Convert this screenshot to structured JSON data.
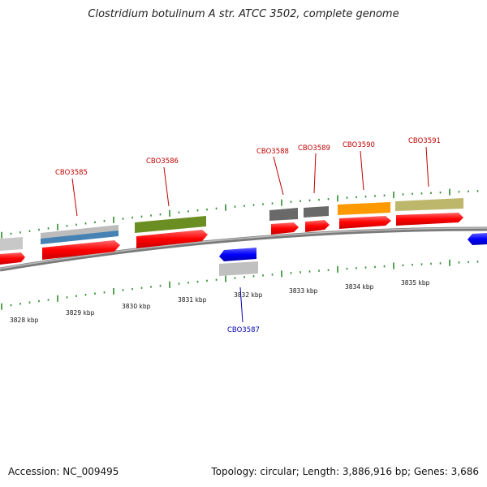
{
  "title": "Clostridium botulinum A str. ATCC 3502, complete genome",
  "accession": "Accession: NC_009495",
  "topology": "Topology: circular; Length: 3,886,916 bp; Genes: 3,686",
  "colors": {
    "label_forward": "#c00000",
    "label_reverse": "#0000b0",
    "cds_forward": "#ff0000",
    "cds_reverse": "#0000ff",
    "backbone": "#808080",
    "tick": "#2e8b2e"
  },
  "kbp_ticks": [
    "3828 kbp",
    "3829 kbp",
    "3830 kbp",
    "3831 kbp",
    "3832 kbp",
    "3833 kbp",
    "3834 kbp",
    "3835 kbp"
  ],
  "genes": [
    {
      "label": "",
      "strand": "forward",
      "func_color": "#c8c8c8"
    },
    {
      "label": "CBO3585",
      "strand": "forward",
      "func_color": "#c0c0c0",
      "func_color2": "#4682b4"
    },
    {
      "label": "CBO3586",
      "strand": "forward",
      "func_color": "#6b8e23"
    },
    {
      "label": "CBO3587",
      "strand": "reverse",
      "func_color": "#c0c0c0"
    },
    {
      "label": "CBO3588",
      "strand": "forward",
      "func_color": "#696969"
    },
    {
      "label": "CBO3589",
      "strand": "forward",
      "func_color": "#696969"
    },
    {
      "label": "CBO3590",
      "strand": "forward",
      "func_color": "#ff9900"
    },
    {
      "label": "CBO3591",
      "strand": "forward",
      "func_color": "#bdb76b"
    },
    {
      "label": "",
      "strand": "reverse",
      "func_color": ""
    }
  ]
}
